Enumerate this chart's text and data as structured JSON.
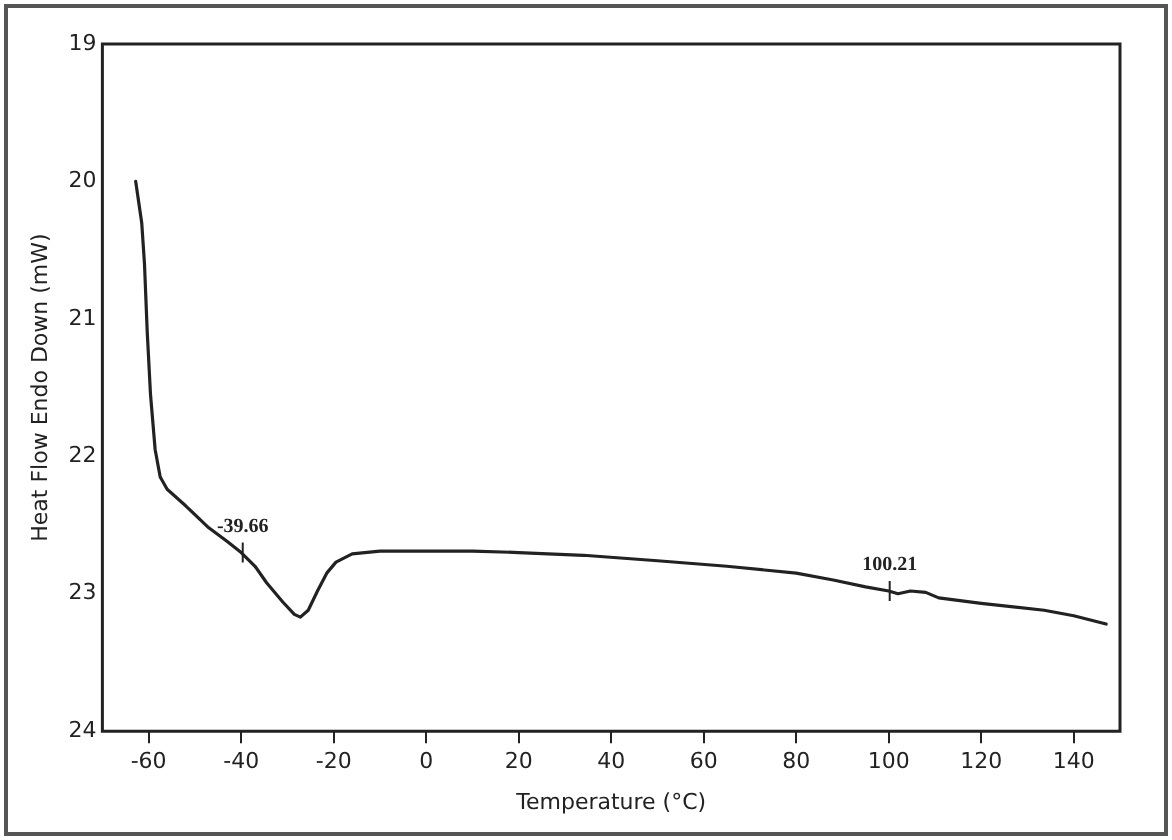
{
  "chart_data": {
    "type": "line",
    "xlabel": "Temperature (°C)",
    "ylabel": "Heat Flow Endo Down (mW)",
    "xlim": [
      -70,
      150
    ],
    "xticks": [
      -60,
      -40,
      -20,
      0,
      20,
      40,
      60,
      80,
      100,
      120,
      140
    ],
    "ylim": [
      24,
      19
    ],
    "yticks": [
      19,
      20,
      21,
      22,
      23,
      24
    ],
    "series": [
      {
        "color": "#222222",
        "x": [
          -62.8,
          -61.5,
          -60.9,
          -60.3,
          -59.6,
          -58.6,
          -57.5,
          -56,
          -52,
          -47,
          -43,
          -40,
          -37,
          -34.5,
          -31,
          -28.5,
          -27.2,
          -25.5,
          -23.5,
          -21.5,
          -19.5,
          -16,
          -10,
          0,
          10,
          20,
          34,
          50,
          65,
          80,
          88,
          95,
          100,
          102,
          104.7,
          108,
          110.8,
          120,
          133.6,
          140,
          147
        ],
        "values": [
          20.0,
          20.3,
          20.6,
          21.1,
          21.55,
          21.95,
          22.15,
          22.24,
          22.36,
          22.52,
          22.62,
          22.7,
          22.8,
          22.92,
          23.06,
          23.15,
          23.17,
          23.12,
          22.98,
          22.85,
          22.77,
          22.71,
          22.69,
          22.69,
          22.69,
          22.7,
          22.72,
          22.76,
          22.8,
          22.85,
          22.9,
          22.95,
          22.98,
          23.0,
          22.98,
          22.99,
          23.03,
          23.07,
          23.12,
          23.16,
          23.22
        ]
      }
    ],
    "annotations": [
      {
        "text": "-39.66",
        "x": -39.66,
        "y": 22.7
      },
      {
        "text": "100.21",
        "x": 100.21,
        "y": 22.98
      }
    ],
    "grid": false,
    "legend": false,
    "marker": "none",
    "line_style": "solid"
  }
}
